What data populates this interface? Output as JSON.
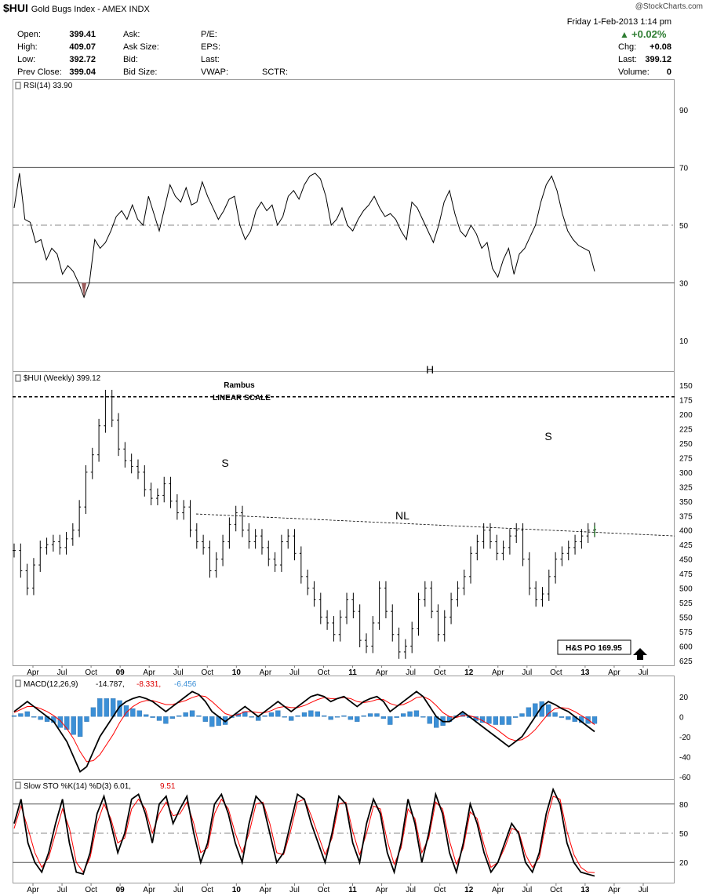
{
  "header": {
    "symbol": "$HUI",
    "name": "Gold Bugs Index - AMEX  INDX",
    "brand": "@StockCharts.com",
    "date": "Friday   1-Feb-2013  1:14 pm",
    "change_pct": "+0.02%",
    "quote": [
      {
        "label": "Open:",
        "value": "399.41"
      },
      {
        "label": "High:",
        "value": "409.07"
      },
      {
        "label": "Low:",
        "value": "392.72"
      },
      {
        "label": "Prev Close:",
        "value": "399.04"
      }
    ],
    "col2": [
      "Ask:",
      "Ask Size:",
      "Bid:",
      "Bid Size:"
    ],
    "col3": [
      "P/E:",
      "EPS:",
      "Last:",
      "VWAP:"
    ],
    "sctr": "SCTR:",
    "right": [
      {
        "label": "Chg:",
        "value": "+0.08"
      },
      {
        "label": "Last:",
        "value": "399.12"
      },
      {
        "label": "Volume:",
        "value": "0"
      }
    ]
  },
  "colors": {
    "price": "#000000",
    "signal": "#ff0000",
    "histogram": "#3b8fd6",
    "rsi_fill": "#9b5b5b",
    "up": "#2e7d32",
    "grid_dash": "#888888"
  },
  "chart_data": [
    {
      "type": "line",
      "panel": "rsi",
      "title": "RSI(14) 33.90",
      "ylim": [
        0,
        100
      ],
      "y_ticks": [
        "10",
        "30",
        "50",
        "70",
        "90"
      ],
      "reference_lines": [
        30,
        50,
        70
      ],
      "x_start": "2008-02",
      "x_step_weeks": 2,
      "values": [
        56,
        68,
        52,
        51,
        44,
        45,
        38,
        42,
        40,
        33,
        36,
        34,
        30,
        25,
        30,
        45,
        42,
        44,
        48,
        53,
        55,
        52,
        57,
        52,
        50,
        60,
        54,
        48,
        56,
        64,
        60,
        58,
        63,
        57,
        58,
        65,
        60,
        56,
        52,
        55,
        59,
        60,
        50,
        45,
        48,
        55,
        58,
        55,
        57,
        50,
        53,
        60,
        62,
        59,
        64,
        67,
        68,
        66,
        60,
        50,
        52,
        56,
        50,
        48,
        52,
        55,
        57,
        60,
        56,
        53,
        54,
        52,
        48,
        45,
        58,
        56,
        52,
        48,
        44,
        50,
        58,
        62,
        54,
        48,
        46,
        50,
        47,
        42,
        44,
        35,
        32,
        38,
        42,
        33,
        40,
        42,
        46,
        50,
        58,
        64,
        67,
        62,
        54,
        48,
        45,
        43,
        42,
        41,
        34
      ]
    },
    {
      "type": "line",
      "panel": "price",
      "title": "$HUI (Weekly) 399.12",
      "subtitle": "LINEAR SCALE",
      "author": "Rambus",
      "ylim": [
        150,
        637.5
      ],
      "y_ticks": [
        "150",
        "175",
        "200",
        "225",
        "250",
        "275",
        "300",
        "325",
        "350",
        "375",
        "400",
        "425",
        "450",
        "475",
        "500",
        "525",
        "550",
        "575",
        "600",
        "625"
      ],
      "x_tick_labels": [
        "Apr",
        "Jul",
        "Oct",
        "09",
        "Apr",
        "Jul",
        "Oct",
        "10",
        "Apr",
        "Jul",
        "Oct",
        "11",
        "Apr",
        "Jul",
        "Oct",
        "12",
        "Apr",
        "Jul",
        "Oct",
        "13",
        "Apr",
        "Jul"
      ],
      "x_start": "2008-02",
      "x_step_weeks": 2,
      "values": [
        435,
        470,
        500,
        460,
        430,
        425,
        420,
        430,
        415,
        400,
        360,
        300,
        270,
        220,
        170,
        210,
        260,
        280,
        290,
        300,
        330,
        345,
        340,
        320,
        350,
        370,
        360,
        400,
        420,
        430,
        470,
        450,
        420,
        390,
        370,
        400,
        420,
        410,
        430,
        450,
        460,
        420,
        410,
        440,
        480,
        500,
        520,
        550,
        560,
        580,
        550,
        520,
        540,
        590,
        600,
        560,
        500,
        540,
        580,
        610,
        600,
        570,
        520,
        500,
        540,
        580,
        550,
        520,
        500,
        480,
        440,
        420,
        400,
        420,
        440,
        430,
        410,
        400,
        450,
        500,
        520,
        510,
        480,
        450,
        440,
        430,
        420,
        410,
        400,
        399
      ],
      "neckline": {
        "label": "NL",
        "start": [
          "2009-08",
          372
        ],
        "end": [
          "2013-08",
          410
        ]
      },
      "pattern_labels": [
        "S",
        "H",
        "S"
      ],
      "price_objective": {
        "label": "H&S PO 169.95",
        "value": 169.95
      }
    },
    {
      "type": "line",
      "panel": "macd",
      "title": "MACD(12,26,9)",
      "legend": [
        "-14.787",
        "-8.331",
        "-6.456"
      ],
      "ylim": [
        -60,
        30
      ],
      "y_ticks": [
        "-60",
        "-40",
        "-20",
        "0",
        "20"
      ],
      "x_start": "2008-02",
      "x_step_weeks": 2,
      "macd": [
        5,
        10,
        15,
        10,
        5,
        0,
        -5,
        -15,
        -25,
        -40,
        -55,
        -50,
        -35,
        -20,
        -10,
        0,
        10,
        15,
        18,
        20,
        18,
        15,
        10,
        5,
        10,
        15,
        20,
        25,
        22,
        15,
        5,
        0,
        -5,
        0,
        5,
        10,
        5,
        0,
        5,
        10,
        15,
        10,
        5,
        10,
        15,
        20,
        22,
        20,
        15,
        18,
        20,
        15,
        10,
        15,
        18,
        20,
        15,
        5,
        10,
        15,
        20,
        25,
        20,
        10,
        0,
        -5,
        -5,
        0,
        5,
        0,
        -5,
        -10,
        -15,
        -20,
        -25,
        -30,
        -25,
        -20,
        -10,
        0,
        10,
        15,
        12,
        8,
        5,
        0,
        -5,
        -10,
        -15
      ],
      "signal": [
        4,
        7,
        10,
        10,
        8,
        5,
        1,
        -4,
        -12,
        -22,
        -35,
        -45,
        -44,
        -38,
        -28,
        -18,
        -6,
        4,
        10,
        14,
        16,
        16,
        14,
        12,
        12,
        14,
        16,
        19,
        21,
        20,
        15,
        9,
        3,
        1,
        2,
        5,
        5,
        4,
        4,
        6,
        9,
        10,
        9,
        9,
        11,
        14,
        17,
        19,
        18,
        18,
        19,
        18,
        15,
        14,
        15,
        17,
        17,
        13,
        11,
        12,
        15,
        19,
        20,
        17,
        11,
        4,
        0,
        -1,
        1,
        1,
        -1,
        -4,
        -8,
        -12,
        -17,
        -22,
        -24,
        -23,
        -19,
        -13,
        -5,
        3,
        8,
        9,
        8,
        5,
        1,
        -3,
        -8
      ],
      "histogram_color": "#3b8fd6"
    },
    {
      "type": "line",
      "panel": "slow_sto",
      "title": "Slow STO %K(14) %D(3)",
      "legend": [
        "6.01",
        "9.51"
      ],
      "ylim": [
        0,
        100
      ],
      "y_ticks": [
        "20",
        "50",
        "80"
      ],
      "reference_lines": [
        20,
        50,
        80
      ],
      "x_start": "2008-02",
      "x_step_weeks": 2,
      "k": [
        60,
        85,
        40,
        20,
        10,
        30,
        60,
        85,
        40,
        10,
        8,
        30,
        70,
        88,
        60,
        30,
        50,
        85,
        90,
        70,
        40,
        80,
        88,
        60,
        75,
        88,
        50,
        20,
        40,
        80,
        90,
        70,
        40,
        20,
        60,
        88,
        80,
        50,
        20,
        30,
        60,
        90,
        85,
        60,
        40,
        20,
        50,
        88,
        80,
        40,
        20,
        60,
        85,
        70,
        30,
        10,
        40,
        85,
        60,
        20,
        50,
        90,
        70,
        30,
        10,
        40,
        80,
        60,
        30,
        10,
        20,
        40,
        60,
        50,
        20,
        10,
        30,
        70,
        95,
        80,
        40,
        20,
        10,
        8,
        6
      ],
      "d": [
        55,
        78,
        55,
        30,
        15,
        25,
        50,
        75,
        55,
        20,
        10,
        25,
        60,
        80,
        65,
        40,
        45,
        75,
        85,
        75,
        50,
        70,
        82,
        68,
        70,
        82,
        60,
        30,
        35,
        70,
        85,
        75,
        50,
        30,
        50,
        80,
        82,
        60,
        30,
        28,
        52,
        82,
        85,
        68,
        48,
        28,
        45,
        80,
        82,
        52,
        28,
        50,
        78,
        75,
        42,
        18,
        35,
        75,
        65,
        30,
        45,
        82,
        75,
        42,
        18,
        35,
        72,
        65,
        38,
        15,
        20,
        35,
        55,
        52,
        28,
        15,
        25,
        62,
        88,
        85,
        52,
        28,
        15,
        10,
        9.5
      ]
    }
  ]
}
